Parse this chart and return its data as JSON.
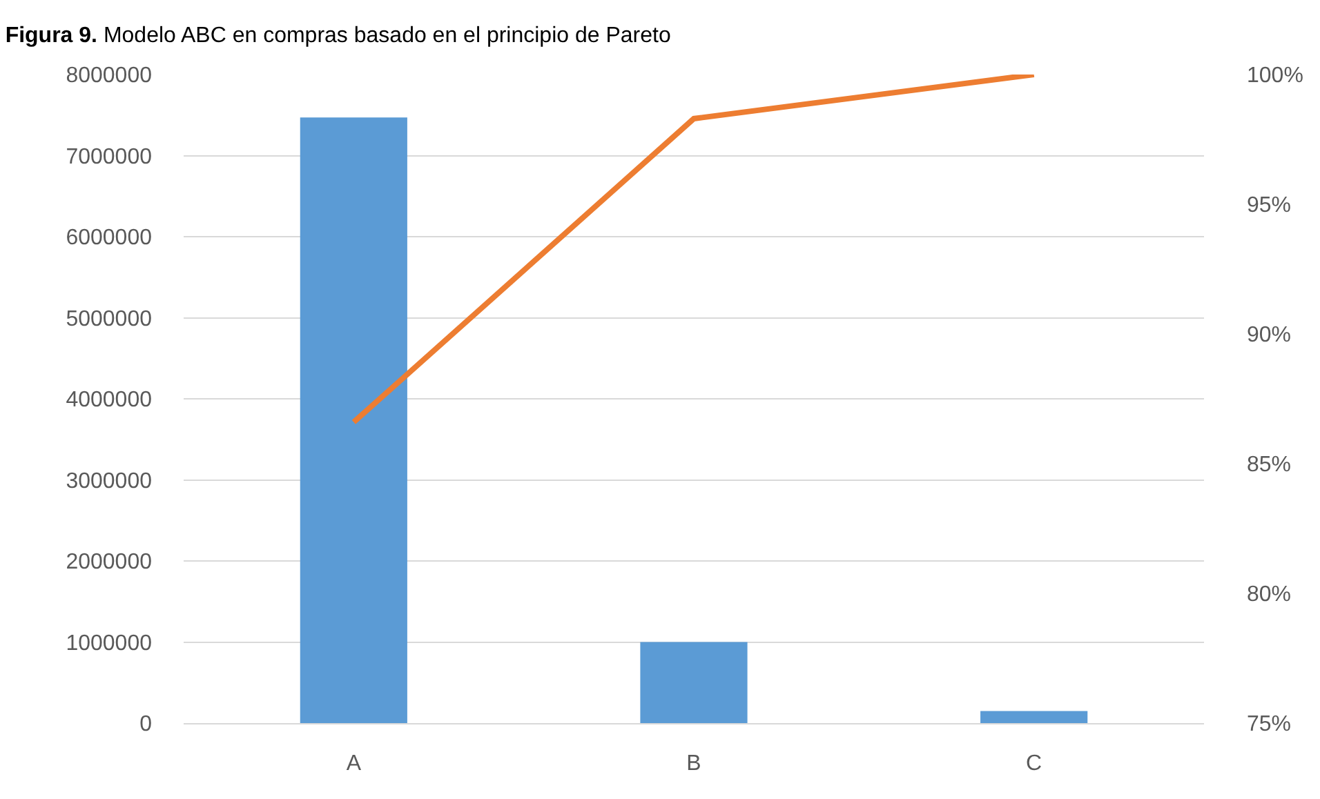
{
  "chart_data": {
    "type": "bar",
    "title": "Figura 9. Modelo ABC en compras basado en el principio de Pareto",
    "categories": [
      "A",
      "B",
      "C"
    ],
    "series": [
      {
        "color": "#5b9bd5",
        "values": [
          7470000,
          1000000,
          150000
        ]
      },
      {
        "type": "line",
        "axis": "y2",
        "color": "#ed7d31",
        "values": [
          86.6,
          98.3,
          100
        ]
      }
    ],
    "ylim": [
      0,
      8000000
    ],
    "yticks": [
      0,
      1000000,
      2000000,
      3000000,
      4000000,
      5000000,
      6000000,
      7000000,
      8000000
    ],
    "y2lim": [
      75,
      100
    ],
    "y2ticks": [
      {
        "value": 75,
        "label": "75%"
      },
      {
        "value": 80,
        "label": "80%"
      },
      {
        "value": 85,
        "label": "85%"
      },
      {
        "value": 90,
        "label": "90%"
      },
      {
        "value": 95,
        "label": "95%"
      },
      {
        "value": 100,
        "label": "100%"
      }
    ],
    "grid": "y",
    "marker": "none",
    "line_style": "solid"
  }
}
